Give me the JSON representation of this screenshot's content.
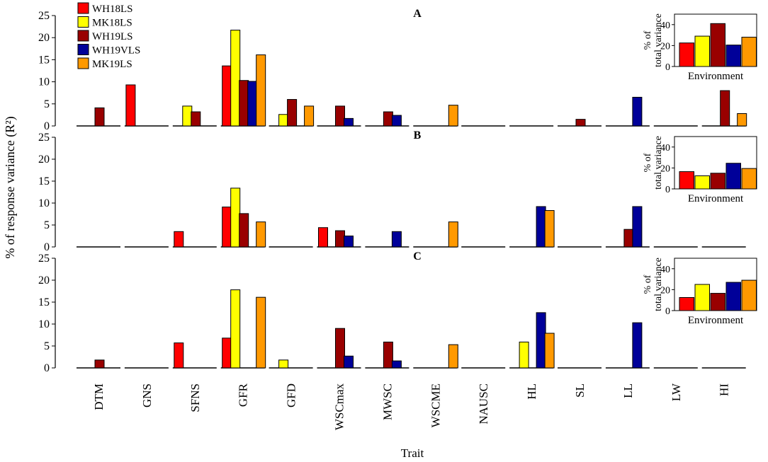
{
  "chart_data": {
    "type": "bar",
    "ylabel": "% of response variance (R²)",
    "xlabel": "Trait",
    "categories": [
      "DTM",
      "GNS",
      "SFNS",
      "GFR",
      "GFD",
      "WSCmax",
      "MWSC",
      "WSCME",
      "NAUSC",
      "HL",
      "SL",
      "LL",
      "LW",
      "HI"
    ],
    "ylim": [
      0,
      25
    ],
    "yticks": [
      0,
      5,
      10,
      15,
      20,
      25
    ],
    "legend": {
      "placement": "top-left",
      "entries": [
        "WH18LS",
        "MK18LS",
        "WH19LS",
        "WH19VLS",
        "MK19LS"
      ]
    },
    "colors": {
      "WH18LS": "#ff0000",
      "MK18LS": "#ffff00",
      "WH19LS": "#990000",
      "WH19VLS": "#000099",
      "MK19LS": "#ff9900"
    },
    "panels": [
      {
        "label": "A",
        "series": [
          {
            "name": "WH18LS",
            "values": [
              0,
              9.3,
              0,
              13.6,
              0,
              0,
              0,
              0,
              0,
              0,
              0,
              0,
              0,
              0
            ]
          },
          {
            "name": "MK18LS",
            "values": [
              0,
              0,
              4.5,
              21.7,
              2.6,
              0,
              0,
              0,
              0,
              0,
              0,
              0,
              0,
              0
            ]
          },
          {
            "name": "WH19LS",
            "values": [
              4.1,
              0,
              3.2,
              10.3,
              6.0,
              4.5,
              3.2,
              0,
              0,
              0,
              1.5,
              0,
              0,
              8.0
            ]
          },
          {
            "name": "WH19VLS",
            "values": [
              0,
              0,
              0,
              10.1,
              0,
              1.7,
              2.4,
              0,
              0,
              0,
              0,
              6.5,
              0,
              0
            ]
          },
          {
            "name": "MK19LS",
            "values": [
              0,
              0,
              0,
              16.1,
              4.5,
              0,
              0,
              4.7,
              0,
              0,
              0,
              0,
              0,
              2.8
            ]
          }
        ],
        "inset": {
          "ylabel_line1": "% of",
          "ylabel_line2": "total variance",
          "xlabel": "Environment",
          "ylim": [
            0,
            50
          ],
          "yticks": [
            0,
            20,
            40
          ],
          "values": [
            22.5,
            29,
            41,
            20.5,
            28
          ]
        }
      },
      {
        "label": "B",
        "series": [
          {
            "name": "WH18LS",
            "values": [
              0,
              0,
              3.5,
              9.1,
              0,
              4.4,
              0,
              0,
              0,
              0,
              0,
              0,
              0,
              0
            ]
          },
          {
            "name": "MK18LS",
            "values": [
              0,
              0,
              0,
              13.4,
              0,
              0,
              0,
              0,
              0,
              0,
              0,
              0,
              0,
              0
            ]
          },
          {
            "name": "WH19LS",
            "values": [
              0,
              0,
              0,
              7.6,
              0,
              3.7,
              0,
              0,
              0,
              0,
              0,
              4.0,
              0,
              0
            ]
          },
          {
            "name": "WH19VLS",
            "values": [
              0,
              0,
              0,
              0,
              0,
              2.5,
              3.5,
              0,
              0,
              9.2,
              0,
              9.2,
              0,
              0
            ]
          },
          {
            "name": "MK19LS",
            "values": [
              0,
              0,
              0,
              5.7,
              0,
              0,
              0,
              5.7,
              0,
              8.3,
              0,
              0,
              0,
              0
            ]
          }
        ],
        "inset": {
          "ylabel_line1": "% of",
          "ylabel_line2": "total variance",
          "xlabel": "Environment",
          "ylim": [
            0,
            50
          ],
          "yticks": [
            0,
            20,
            40
          ],
          "values": [
            16.5,
            12.5,
            15,
            24.5,
            19.5
          ]
        }
      },
      {
        "label": "C",
        "series": [
          {
            "name": "WH18LS",
            "values": [
              0,
              0,
              5.7,
              6.8,
              0,
              0,
              0,
              0,
              0,
              0,
              0,
              0,
              0,
              0
            ]
          },
          {
            "name": "MK18LS",
            "values": [
              0,
              0,
              0,
              17.8,
              1.8,
              0,
              0,
              0,
              0,
              5.9,
              0,
              0,
              0,
              0
            ]
          },
          {
            "name": "WH19LS",
            "values": [
              1.8,
              0,
              0,
              0,
              0,
              9.0,
              5.9,
              0,
              0,
              0,
              0,
              0,
              0,
              0
            ]
          },
          {
            "name": "WH19VLS",
            "values": [
              0,
              0,
              0,
              0,
              0,
              2.7,
              1.6,
              0,
              0,
              12.6,
              0,
              10.3,
              0,
              0
            ]
          },
          {
            "name": "MK19LS",
            "values": [
              0,
              0,
              0,
              16.1,
              0,
              0,
              0,
              5.3,
              0,
              7.9,
              0,
              0,
              0,
              0
            ]
          }
        ],
        "inset": {
          "ylabel_line1": "% of",
          "ylabel_line2": "total variance",
          "xlabel": "Environment",
          "ylim": [
            0,
            50
          ],
          "yticks": [
            0,
            20,
            40
          ],
          "values": [
            12.5,
            25,
            16.5,
            27,
            29
          ]
        }
      }
    ]
  }
}
